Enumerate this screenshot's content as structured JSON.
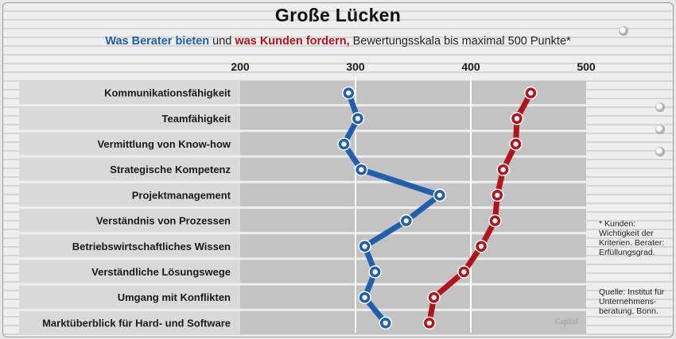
{
  "title": "Große Lücken",
  "subtitle": {
    "part1": "Was Berater bieten",
    "part2": " und ",
    "part3": "was Kunden fordern,",
    "part4": " Bewertungsskala bis maximal 500 Punkte*"
  },
  "footnote": "* Kunden: Wichtigkeit der Kriterien. Berater: Erfüllungsgrad.",
  "source": "Quelle: Institut für Unternehmens-beratung, Bonn.",
  "brand": "Capital",
  "colors": {
    "berater": "#1f5fae",
    "kunden": "#b3141c"
  },
  "chart_data": {
    "type": "line",
    "title": "Große Lücken",
    "orientation": "horizontal",
    "categories": [
      "Kommunikationsfähigkeit",
      "Teamfähigkeit",
      "Vermittlung von Know-how",
      "Strategische Kompetenz",
      "Projektmanagement",
      "Verständnis von Prozessen",
      "Betriebswirtschaftliches Wissen",
      "Verständliche Lösungswege",
      "Umgang mit Konflikten",
      "Marktüberblick für Hard- und Software"
    ],
    "xlim": [
      200,
      500
    ],
    "xticks": [
      200,
      300,
      400,
      500
    ],
    "tick_labels": [
      "200",
      "300",
      "400",
      "500"
    ],
    "series": [
      {
        "name": "Was Berater bieten",
        "color": "#1f5fae",
        "values": [
          294,
          302,
          290,
          305,
          373,
          344,
          308,
          317,
          308,
          326
        ]
      },
      {
        "name": "was Kunden fordern",
        "color": "#b3141c",
        "values": [
          452,
          440,
          439,
          428,
          423,
          421,
          409,
          394,
          368,
          364
        ]
      }
    ]
  }
}
